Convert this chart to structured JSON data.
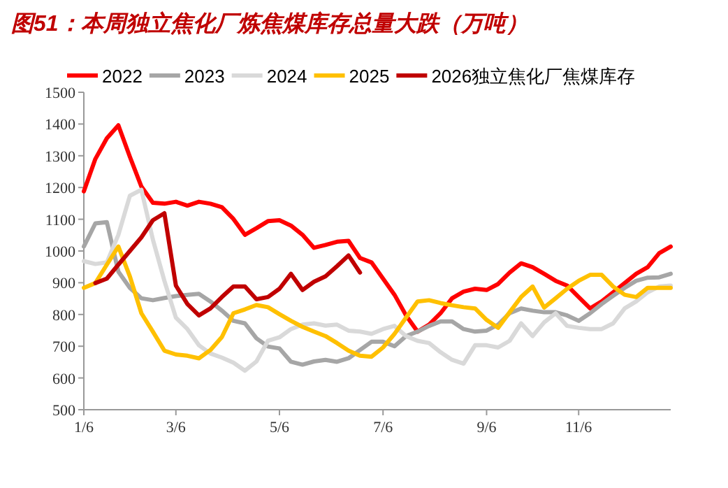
{
  "chart_data": {
    "type": "line",
    "title": "图51：本周独立焦化厂炼焦煤库存总量大跌（万吨）",
    "categories": [
      "1/6",
      null,
      null,
      null,
      null,
      null,
      null,
      null,
      "3/6",
      null,
      null,
      null,
      null,
      null,
      null,
      null,
      null,
      "5/6",
      null,
      null,
      null,
      null,
      null,
      null,
      null,
      null,
      "7/6",
      null,
      null,
      null,
      null,
      null,
      null,
      null,
      null,
      "9/6",
      null,
      null,
      null,
      null,
      null,
      null,
      null,
      "11/6",
      null,
      null,
      null,
      null,
      null,
      null,
      null,
      null
    ],
    "ylim": [
      500,
      1500
    ],
    "yticks": [
      500,
      600,
      700,
      800,
      900,
      1000,
      1100,
      1200,
      1300,
      1400,
      1500
    ],
    "grid": false,
    "legend": "top",
    "marker": "none",
    "line_style": "solid",
    "series": [
      {
        "name": "2022",
        "color": "#ff0000",
        "values": [
          1188,
          1290,
          1355,
          1396,
          1297,
          1203,
          1152,
          1149,
          1155,
          1143,
          1155,
          1149,
          1138,
          1101,
          1051,
          1072,
          1094,
          1097,
          1080,
          1051,
          1010,
          1019,
          1029,
          1032,
          978,
          964,
          913,
          862,
          797,
          746,
          768,
          804,
          851,
          872,
          881,
          877,
          896,
          932,
          961,
          949,
          928,
          906,
          891,
          855,
          819,
          841,
          870,
          899,
          928,
          949,
          993,
          1014
        ]
      },
      {
        "name": "2023",
        "color": "#a6a6a6",
        "values": [
          1014,
          1087,
          1091,
          935,
          884,
          851,
          845,
          852,
          858,
          862,
          865,
          841,
          812,
          780,
          772,
          725,
          699,
          693,
          651,
          642,
          652,
          657,
          651,
          662,
          688,
          714,
          714,
          700,
          732,
          746,
          764,
          778,
          778,
          754,
          746,
          749,
          768,
          804,
          819,
          812,
          807,
          807,
          797,
          780,
          804,
          833,
          859,
          884,
          906,
          916,
          917,
          928
        ]
      },
      {
        "name": "2024",
        "color": "#d9d9d9",
        "values": [
          968,
          959,
          964,
          1051,
          1174,
          1193,
          1036,
          906,
          790,
          754,
          703,
          677,
          664,
          648,
          623,
          652,
          717,
          728,
          754,
          768,
          772,
          765,
          768,
          749,
          746,
          739,
          754,
          764,
          732,
          717,
          710,
          681,
          657,
          645,
          703,
          703,
          696,
          717,
          772,
          732,
          775,
          804,
          764,
          758,
          754,
          754,
          772,
          819,
          841,
          870,
          888,
          891
        ]
      },
      {
        "name": "2025",
        "color": "#ffc000",
        "values": [
          884,
          899,
          957,
          1014,
          920,
          804,
          746,
          686,
          674,
          670,
          662,
          688,
          729,
          804,
          816,
          830,
          823,
          801,
          780,
          761,
          746,
          732,
          710,
          686,
          670,
          667,
          696,
          739,
          790,
          841,
          845,
          836,
          829,
          823,
          819,
          783,
          758,
          807,
          855,
          888,
          822,
          851,
          881,
          906,
          925,
          925,
          888,
          862,
          855,
          884,
          884,
          884
        ]
      },
      {
        "name": "2026独立焦化厂焦煤库存",
        "color": "#c00000",
        "values": [
          null,
          899,
          913,
          957,
          1000,
          1043,
          1097,
          1119,
          891,
          833,
          797,
          819,
          855,
          888,
          888,
          848,
          855,
          881,
          928,
          877,
          903,
          920,
          952,
          986,
          932,
          null,
          null,
          null,
          null,
          null,
          null,
          null,
          null,
          null,
          null,
          null,
          null,
          null,
          null,
          null,
          null,
          null,
          null,
          null,
          null,
          null,
          null,
          null,
          null,
          null,
          null,
          null
        ]
      }
    ]
  }
}
